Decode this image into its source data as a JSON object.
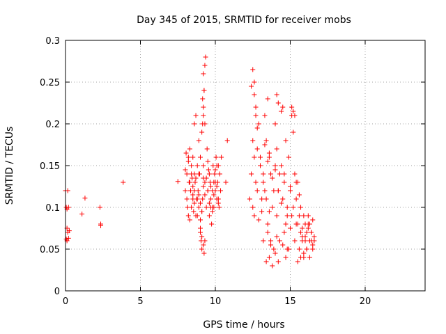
{
  "chart_data": {
    "type": "scatter",
    "title": "Day 345 of 2015, SRMTID for receiver mobs",
    "xlabel": "GPS time / hours",
    "ylabel": "SRMTID / TECUs",
    "xlim": [
      0,
      24
    ],
    "ylim": [
      0,
      0.3
    ],
    "x_ticks": [
      0,
      5,
      10,
      15,
      20
    ],
    "y_ticks": [
      0,
      0.05,
      0.1,
      0.15,
      0.2,
      0.25,
      0.3
    ],
    "grid": true,
    "legend": "none",
    "marker": "plus",
    "color": "#ff0000",
    "series": [
      {
        "name": "",
        "x": [
          0.0,
          0.05,
          0.05,
          0.1,
          0.1,
          0.1,
          0.15,
          0.15,
          0.2,
          0.2,
          0.25,
          1.1,
          1.3,
          2.3,
          2.35,
          2.35,
          3.85,
          7.5,
          8.0,
          8.0,
          8.05,
          8.1,
          8.1,
          8.15,
          8.2,
          8.2,
          8.25,
          8.3,
          8.3,
          8.35,
          8.4,
          8.4,
          8.45,
          8.5,
          8.5,
          8.55,
          8.6,
          8.6,
          8.65,
          8.7,
          8.75,
          8.8,
          8.8,
          8.85,
          8.9,
          8.9,
          8.95,
          9.0,
          9.0,
          9.05,
          9.1,
          9.15,
          9.15,
          9.2,
          9.2,
          9.25,
          9.3,
          9.3,
          9.35,
          9.4,
          9.45,
          9.5,
          9.55,
          9.6,
          9.65,
          9.7,
          9.75,
          9.8,
          9.85,
          9.9,
          9.95,
          10.0,
          10.05,
          10.1,
          10.15,
          10.2,
          10.25,
          10.3,
          10.35,
          10.4,
          10.7,
          10.8,
          8.5,
          8.6,
          8.7,
          9.0,
          9.1,
          9.2,
          9.3,
          9.4,
          9.5,
          9.6,
          9.7,
          9.8,
          9.9,
          10.0,
          10.1,
          10.2,
          8.9,
          9.0,
          9.1,
          9.2,
          9.0,
          9.1,
          9.2,
          9.25,
          9.3,
          9.15,
          9.2,
          9.25,
          9.1,
          9.2,
          9.3,
          8.2,
          8.4,
          8.6,
          8.8,
          9.6,
          9.8,
          10.0,
          10.2,
          8.3,
          8.5,
          8.7,
          8.9,
          9.5,
          9.7,
          9.9,
          10.1,
          12.3,
          12.4,
          12.5,
          12.5,
          12.6,
          12.6,
          12.7,
          12.7,
          12.8,
          12.9,
          12.9,
          13.0,
          13.1,
          13.1,
          13.2,
          13.3,
          13.3,
          13.4,
          13.5,
          13.5,
          13.6,
          13.7,
          13.7,
          13.8,
          13.9,
          13.9,
          14.0,
          14.1,
          14.1,
          14.2,
          14.3,
          14.3,
          14.4,
          14.5,
          14.5,
          14.6,
          14.7,
          14.7,
          14.8,
          14.9,
          14.9,
          15.0,
          15.1,
          15.1,
          15.2,
          15.3,
          15.3,
          15.4,
          15.5,
          15.5,
          15.6,
          15.7,
          15.7,
          15.8,
          15.9,
          15.9,
          16.0,
          16.1,
          16.1,
          16.2,
          16.3,
          16.3,
          16.4,
          16.5,
          16.5,
          16.6,
          12.5,
          12.6,
          12.7,
          12.8,
          13.3,
          13.5,
          13.6,
          14.0,
          14.1,
          14.2,
          14.4,
          15.1,
          15.2,
          15.3,
          12.4,
          12.6,
          12.8,
          13.0,
          13.2,
          13.4,
          13.6,
          13.8,
          14.0,
          14.2,
          14.4,
          14.6,
          14.8,
          15.0,
          15.2,
          15.4,
          15.6,
          13.4,
          13.6,
          13.8,
          14.0,
          14.2,
          14.5,
          14.7,
          14.9,
          15.5,
          15.7,
          15.9,
          16.1,
          16.3,
          16.5,
          15.6,
          15.8,
          16.0,
          16.2,
          16.4,
          16.6,
          13.2,
          13.5,
          13.7,
          14.1,
          14.3,
          14.6,
          14.8,
          15.0,
          15.4,
          15.8,
          16.0,
          16.2,
          16.4
        ],
        "y": [
          0.12,
          0.1,
          0.062,
          0.098,
          0.075,
          0.06,
          0.12,
          0.07,
          0.1,
          0.063,
          0.072,
          0.092,
          0.111,
          0.1,
          0.08,
          0.078,
          0.13,
          0.131,
          0.145,
          0.12,
          0.165,
          0.11,
          0.14,
          0.1,
          0.155,
          0.09,
          0.13,
          0.17,
          0.085,
          0.12,
          0.15,
          0.1,
          0.135,
          0.115,
          0.16,
          0.095,
          0.14,
          0.2,
          0.13,
          0.21,
          0.11,
          0.15,
          0.09,
          0.12,
          0.18,
          0.1,
          0.14,
          0.07,
          0.16,
          0.06,
          0.05,
          0.11,
          0.23,
          0.15,
          0.26,
          0.24,
          0.13,
          0.2,
          0.28,
          0.1,
          0.17,
          0.12,
          0.145,
          0.09,
          0.13,
          0.11,
          0.08,
          0.12,
          0.15,
          0.1,
          0.14,
          0.12,
          0.16,
          0.11,
          0.13,
          0.15,
          0.1,
          0.14,
          0.12,
          0.16,
          0.13,
          0.18,
          0.125,
          0.105,
          0.135,
          0.085,
          0.095,
          0.125,
          0.115,
          0.135,
          0.155,
          0.105,
          0.125,
          0.095,
          0.115,
          0.145,
          0.125,
          0.105,
          0.115,
          0.105,
          0.095,
          0.135,
          0.075,
          0.065,
          0.055,
          0.045,
          0.06,
          0.2,
          0.22,
          0.24,
          0.19,
          0.21,
          0.27,
          0.16,
          0.14,
          0.12,
          0.11,
          0.14,
          0.1,
          0.13,
          0.11,
          0.13,
          0.11,
          0.09,
          0.14,
          0.12,
          0.1,
          0.13,
          0.15,
          0.11,
          0.245,
          0.18,
          0.1,
          0.25,
          0.09,
          0.22,
          0.13,
          0.17,
          0.085,
          0.2,
          0.16,
          0.11,
          0.095,
          0.14,
          0.12,
          0.21,
          0.18,
          0.08,
          0.23,
          0.16,
          0.06,
          0.14,
          0.1,
          0.12,
          0.05,
          0.2,
          0.17,
          0.09,
          0.12,
          0.14,
          0.06,
          0.15,
          0.22,
          0.11,
          0.13,
          0.08,
          0.18,
          0.1,
          0.05,
          0.16,
          0.12,
          0.09,
          0.21,
          0.19,
          0.14,
          0.06,
          0.11,
          0.08,
          0.13,
          0.05,
          0.07,
          0.1,
          0.06,
          0.09,
          0.04,
          0.08,
          0.07,
          0.05,
          0.09,
          0.06,
          0.08,
          0.07,
          0.05,
          0.085,
          0.065,
          0.265,
          0.235,
          0.21,
          0.195,
          0.175,
          0.155,
          0.165,
          0.145,
          0.235,
          0.225,
          0.215,
          0.22,
          0.215,
          0.21,
          0.14,
          0.16,
          0.12,
          0.15,
          0.13,
          0.11,
          0.095,
          0.135,
          0.15,
          0.12,
          0.105,
          0.14,
          0.09,
          0.125,
          0.1,
          0.13,
          0.115,
          0.035,
          0.04,
          0.03,
          0.045,
          0.035,
          0.055,
          0.04,
          0.05,
          0.035,
          0.04,
          0.045,
          0.05,
          0.04,
          0.055,
          0.09,
          0.075,
          0.065,
          0.08,
          0.07,
          0.06,
          0.06,
          0.07,
          0.055,
          0.065,
          0.06,
          0.07,
          0.05,
          0.075,
          0.08,
          0.065,
          0.06,
          0.075,
          0.06
        ]
      }
    ]
  }
}
